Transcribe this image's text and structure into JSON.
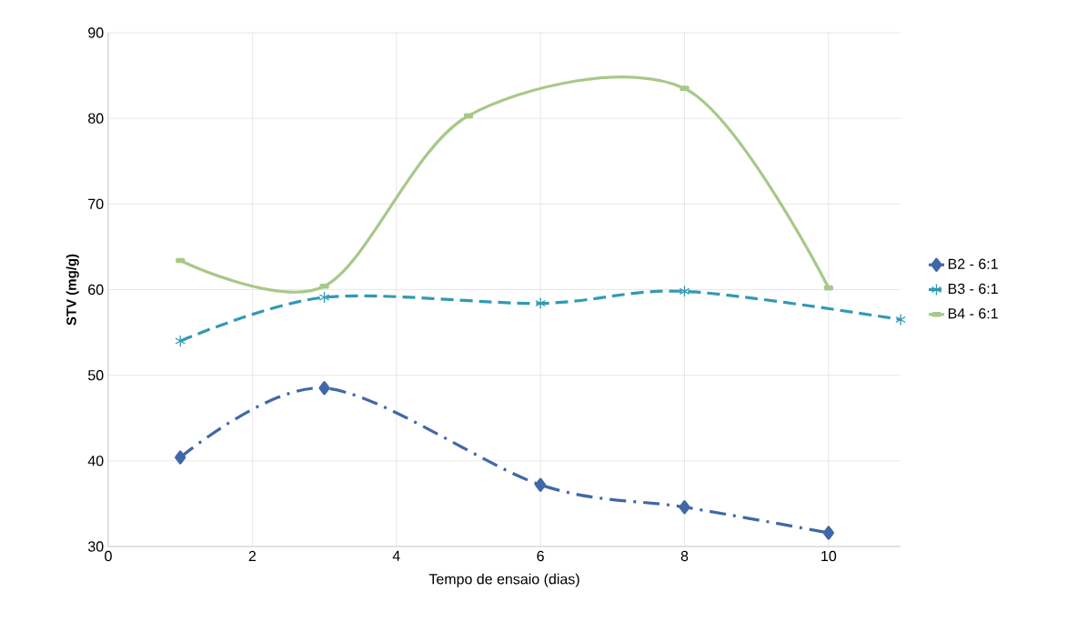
{
  "chart_data": {
    "type": "line",
    "xlabel": "Tempo de ensaio (dias)",
    "ylabel": "STV (mg/g)",
    "xlim": [
      0,
      11
    ],
    "xticks": [
      0,
      2,
      4,
      6,
      8,
      10
    ],
    "ylim": [
      30,
      90
    ],
    "yticks": [
      30,
      40,
      50,
      60,
      70,
      80,
      90
    ],
    "grid": true,
    "legend": "right",
    "series": [
      {
        "name": "B2 - 6:1",
        "color": "#4068a8",
        "x": [
          1,
          3,
          6,
          8,
          10
        ],
        "values": [
          40.4,
          48.5,
          37.2,
          34.6,
          31.6
        ],
        "marker": "diamond",
        "line_style": "dashdot"
      },
      {
        "name": "B3 - 6:1",
        "color": "#3399b5",
        "x": [
          1,
          3,
          6,
          8,
          11
        ],
        "values": [
          54.0,
          59.1,
          58.4,
          59.8,
          56.5
        ],
        "marker": "cross",
        "line_style": "dashed"
      },
      {
        "name": "B4 - 6:1",
        "color": "#a8c888",
        "x": [
          1,
          3,
          5,
          8,
          10
        ],
        "values": [
          63.4,
          60.4,
          80.3,
          83.5,
          60.2
        ],
        "marker": "square",
        "line_style": "solid"
      }
    ]
  }
}
